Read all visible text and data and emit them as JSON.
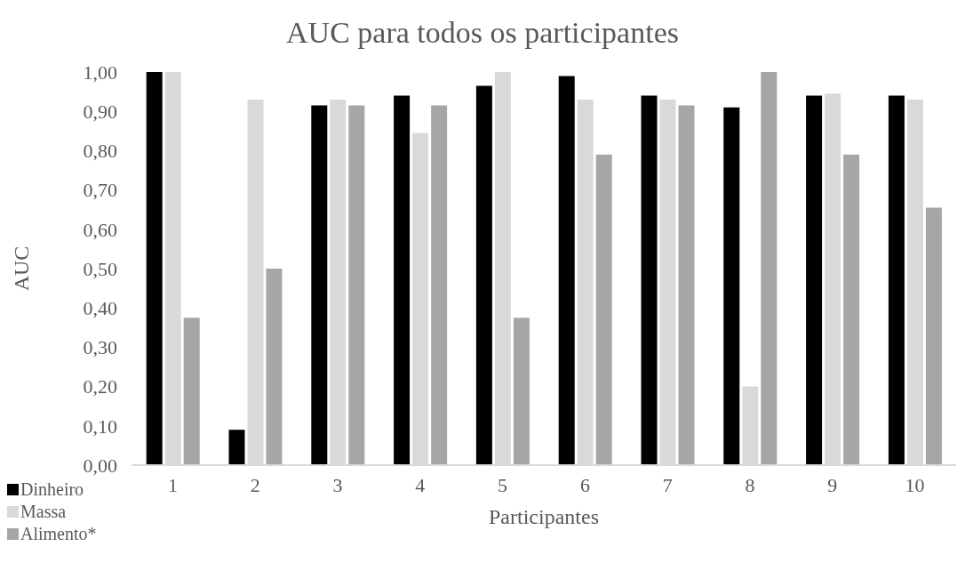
{
  "chart_data": {
    "type": "bar",
    "title": "AUC para todos os participantes",
    "xlabel": "Participantes",
    "ylabel": "AUC",
    "categories": [
      "1",
      "2",
      "3",
      "4",
      "5",
      "6",
      "7",
      "8",
      "9",
      "10"
    ],
    "series": [
      {
        "name": "Dinheiro",
        "color": "#000000",
        "values": [
          1.0,
          0.09,
          0.915,
          0.94,
          0.965,
          0.99,
          0.94,
          0.91,
          0.94,
          0.94
        ]
      },
      {
        "name": "Massa",
        "color": "#d9d9d9",
        "values": [
          1.0,
          0.93,
          0.93,
          0.845,
          1.0,
          0.93,
          0.93,
          0.2,
          0.945,
          0.93
        ]
      },
      {
        "name": "Alimento*",
        "color": "#a6a6a6",
        "values": [
          0.375,
          0.5,
          0.915,
          0.915,
          0.375,
          0.79,
          0.915,
          1.0,
          0.79,
          0.655
        ]
      }
    ],
    "ylim": [
      0,
      1
    ],
    "yticks": [
      {
        "value": 0,
        "label": "0,00"
      },
      {
        "value": 0.1,
        "label": "0,10"
      },
      {
        "value": 0.2,
        "label": "0,20"
      },
      {
        "value": 0.3,
        "label": "0,30"
      },
      {
        "value": 0.4,
        "label": "0,40"
      },
      {
        "value": 0.5,
        "label": "0,50"
      },
      {
        "value": 0.6,
        "label": "0,60"
      },
      {
        "value": 0.7,
        "label": "0,70"
      },
      {
        "value": 0.8,
        "label": "0,80"
      },
      {
        "value": 0.9,
        "label": "0,90"
      },
      {
        "value": 1,
        "label": "1,00"
      }
    ],
    "grid": false,
    "legend": "bottom left"
  }
}
